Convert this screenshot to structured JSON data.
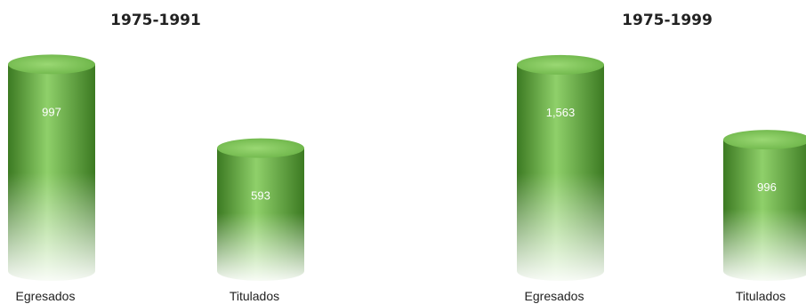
{
  "chart_data": [
    {
      "type": "bar",
      "title": "1975-1991",
      "categories": [
        "Egresados",
        "Titulados"
      ],
      "values": [
        997,
        593
      ],
      "data_labels": [
        "997",
        "593"
      ],
      "ylim": [
        0,
        1050
      ]
    },
    {
      "type": "bar",
      "title": "1975-1999",
      "categories": [
        "Egresados",
        "Titulados"
      ],
      "values": [
        1563,
        996
      ],
      "data_labels": [
        "1,563",
        "996"
      ],
      "ylim": [
        0,
        1650
      ]
    }
  ],
  "colors": {
    "bar_light": "#8fd06a",
    "bar_mid": "#5fa83a",
    "bar_dark": "#3c7a22",
    "bar_top": "#7ec456"
  }
}
